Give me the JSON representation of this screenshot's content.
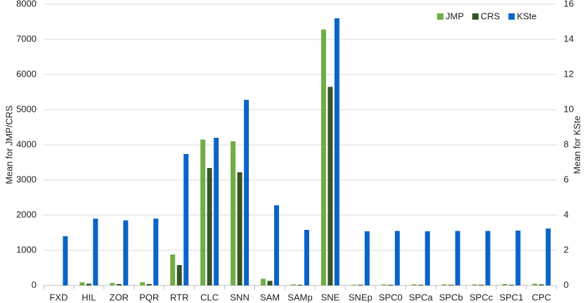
{
  "chart_data": {
    "type": "bar",
    "categories": [
      "FXD",
      "HIL",
      "ZOR",
      "PQR",
      "RTR",
      "CLC",
      "SNN",
      "SAM",
      "SAMp",
      "SNE",
      "SNEp",
      "SPC0",
      "SPCa",
      "SPCb",
      "SPCc",
      "SPC1",
      "CPC"
    ],
    "series": [
      {
        "name": "JMP",
        "color": "#70ad47",
        "values": [
          0,
          90,
          70,
          90,
          880,
          4150,
          4100,
          190,
          30,
          7280,
          20,
          30,
          30,
          30,
          30,
          40,
          50
        ]
      },
      {
        "name": "CRS",
        "color": "#375623",
        "values": [
          0,
          50,
          40,
          40,
          580,
          3340,
          3220,
          130,
          20,
          5650,
          20,
          20,
          20,
          20,
          20,
          20,
          30
        ]
      },
      {
        "name": "KSte",
        "color": "#0a64c8",
        "axis": "y2",
        "values": [
          2.8,
          3.8,
          3.7,
          3.8,
          7.48,
          8.4,
          10.56,
          4.56,
          3.16,
          15.2,
          3.08,
          3.1,
          3.08,
          3.1,
          3.1,
          3.12,
          3.24
        ]
      }
    ],
    "y_label": "Mean for JMP/CRS",
    "y2_label": "Mean for KSte",
    "ylim": [
      0,
      8000
    ],
    "yticks": [
      0,
      1000,
      2000,
      3000,
      4000,
      5000,
      6000,
      7000,
      8000
    ],
    "y2lim": [
      0,
      16
    ],
    "y2ticks": [
      0,
      2,
      4,
      6,
      8,
      10,
      12,
      14,
      16
    ],
    "grid": true,
    "legend": "top-right"
  }
}
